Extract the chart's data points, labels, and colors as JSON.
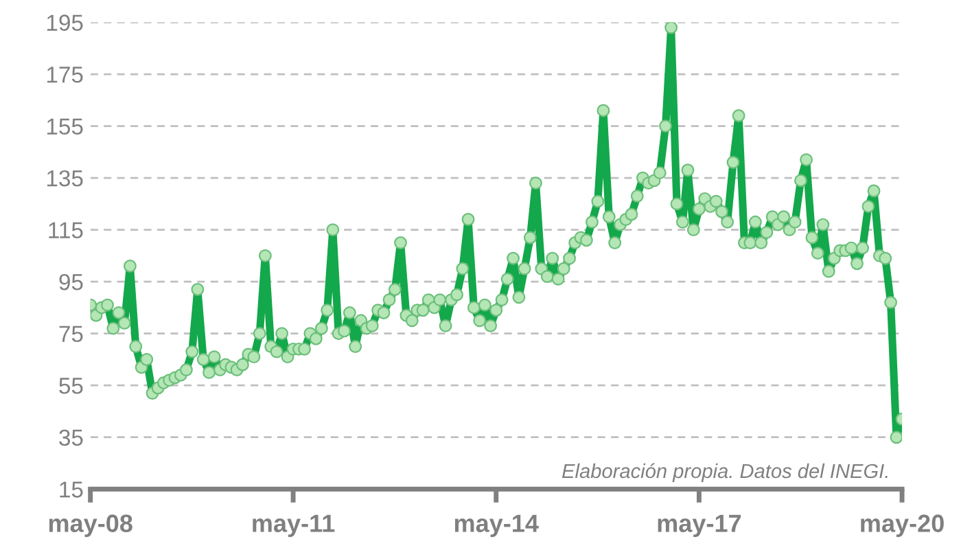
{
  "chart_data": {
    "type": "line",
    "annotations": [
      "Elaboración propia. Datos del INEGI."
    ],
    "xlim": [
      "2008-05",
      "2020-05"
    ],
    "xticks": [
      {
        "value": "2008-05",
        "label": "may-08"
      },
      {
        "value": "2011-05",
        "label": "may-11"
      },
      {
        "value": "2014-05",
        "label": "may-14"
      },
      {
        "value": "2017-05",
        "label": "may-17"
      },
      {
        "value": "2020-05",
        "label": "may-20"
      }
    ],
    "ylim": [
      15,
      195
    ],
    "yticks": [
      15,
      35,
      55,
      75,
      95,
      115,
      135,
      155,
      175,
      195
    ],
    "grid": "y",
    "legend": false,
    "marker": "circle",
    "line_style": "solid",
    "tick_labels": [
      "x",
      "y"
    ],
    "x": [
      "2008-05",
      "2008-06",
      "2008-07",
      "2008-08",
      "2008-09",
      "2008-10",
      "2008-11",
      "2008-12",
      "2009-01",
      "2009-02",
      "2009-03",
      "2009-04",
      "2009-05",
      "2009-06",
      "2009-07",
      "2009-08",
      "2009-09",
      "2009-10",
      "2009-11",
      "2009-12",
      "2010-01",
      "2010-02",
      "2010-03",
      "2010-04",
      "2010-05",
      "2010-06",
      "2010-07",
      "2010-08",
      "2010-09",
      "2010-10",
      "2010-11",
      "2010-12",
      "2011-01",
      "2011-02",
      "2011-03",
      "2011-04",
      "2011-05",
      "2011-06",
      "2011-07",
      "2011-08",
      "2011-09",
      "2011-10",
      "2011-11",
      "2011-12",
      "2012-01",
      "2012-02",
      "2012-03",
      "2012-04",
      "2012-05",
      "2012-06",
      "2012-07",
      "2012-08",
      "2012-09",
      "2012-10",
      "2012-11",
      "2012-12",
      "2013-01",
      "2013-02",
      "2013-03",
      "2013-04",
      "2013-05",
      "2013-06",
      "2013-07",
      "2013-08",
      "2013-09",
      "2013-10",
      "2013-11",
      "2013-12",
      "2014-01",
      "2014-02",
      "2014-03",
      "2014-04",
      "2014-05",
      "2014-06",
      "2014-07",
      "2014-08",
      "2014-09",
      "2014-10",
      "2014-11",
      "2014-12",
      "2015-01",
      "2015-02",
      "2015-03",
      "2015-04",
      "2015-05",
      "2015-06",
      "2015-07",
      "2015-08",
      "2015-09",
      "2015-10",
      "2015-11",
      "2015-12",
      "2016-01",
      "2016-02",
      "2016-03",
      "2016-04",
      "2016-05",
      "2016-06",
      "2016-07",
      "2016-08",
      "2016-09",
      "2016-10",
      "2016-11",
      "2016-12",
      "2017-01",
      "2017-02",
      "2017-03",
      "2017-04",
      "2017-05",
      "2017-06",
      "2017-07",
      "2017-08",
      "2017-09",
      "2017-10",
      "2017-11",
      "2017-12",
      "2018-01",
      "2018-02",
      "2018-03",
      "2018-04",
      "2018-05",
      "2018-06",
      "2018-07",
      "2018-08",
      "2018-09",
      "2018-10",
      "2018-11",
      "2018-12",
      "2019-01",
      "2019-02",
      "2019-03",
      "2019-04",
      "2019-05",
      "2019-06",
      "2019-07",
      "2019-08",
      "2019-09",
      "2019-10",
      "2019-11",
      "2019-12",
      "2020-01",
      "2020-02",
      "2020-03",
      "2020-04",
      "2020-05"
    ],
    "series": [
      {
        "color": "#13a84b",
        "values": [
          86,
          82,
          85,
          86,
          77,
          83,
          79,
          101,
          70,
          62,
          65,
          52,
          54,
          56,
          57,
          58,
          59,
          61,
          68,
          92,
          65,
          60,
          66,
          61,
          63,
          62,
          61,
          63,
          67,
          66,
          75,
          105,
          70,
          68,
          75,
          66,
          69,
          69,
          69,
          75,
          73,
          77,
          84,
          115,
          75,
          76,
          83,
          70,
          80,
          77,
          78,
          84,
          83,
          88,
          92,
          110,
          82,
          80,
          84,
          84,
          88,
          85,
          88,
          78,
          88,
          90,
          100,
          119,
          85,
          80,
          86,
          78,
          84,
          88,
          96,
          104,
          89,
          100,
          112,
          133,
          100,
          97,
          104,
          96,
          100,
          104,
          110,
          112,
          111,
          118,
          126,
          161,
          120,
          110,
          117,
          119,
          121,
          128,
          135,
          133,
          134,
          137,
          155,
          193,
          125,
          118,
          138,
          115,
          123,
          127,
          124,
          126,
          122,
          118,
          141,
          159,
          110,
          110,
          118,
          110,
          114,
          120,
          117,
          120,
          115,
          118,
          134,
          142,
          112,
          106,
          117,
          99,
          104,
          107,
          107,
          108,
          102,
          108,
          124,
          130,
          105,
          104,
          87,
          35,
          42
        ]
      }
    ]
  }
}
